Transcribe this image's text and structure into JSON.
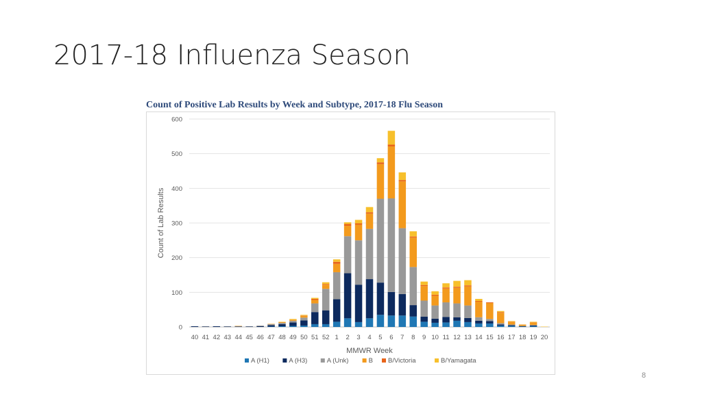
{
  "slide": {
    "title": "2017-18 Influenza Season",
    "page_number": "8"
  },
  "chart_data": {
    "type": "bar",
    "stacked": true,
    "title": "Count of Positive Lab Results by Week and Subtype, 2017-18 Flu Season",
    "xlabel": "MMWR Week",
    "ylabel": "Count of Lab Results",
    "ylim": [
      0,
      600
    ],
    "yticks": [
      0,
      100,
      200,
      300,
      400,
      500,
      600
    ],
    "grid": true,
    "legend_position": "bottom",
    "categories": [
      "40",
      "41",
      "42",
      "43",
      "44",
      "45",
      "46",
      "47",
      "48",
      "49",
      "50",
      "51",
      "52",
      "1",
      "2",
      "3",
      "4",
      "5",
      "6",
      "7",
      "8",
      "9",
      "10",
      "11",
      "12",
      "13",
      "14",
      "15",
      "16",
      "17",
      "18",
      "19",
      "20"
    ],
    "series": [
      {
        "name": "A (H1)",
        "color": "#1f77b4",
        "values": [
          0,
          0,
          0,
          0,
          0,
          0,
          0,
          1,
          2,
          3,
          4,
          8,
          8,
          15,
          25,
          14,
          25,
          35,
          33,
          33,
          30,
          15,
          12,
          13,
          18,
          14,
          10,
          10,
          4,
          3,
          1,
          2,
          0
        ]
      },
      {
        "name": "A (H3)",
        "color": "#0d2a5e",
        "values": [
          2,
          1,
          2,
          1,
          1,
          1,
          2,
          4,
          6,
          10,
          15,
          35,
          40,
          65,
          130,
          108,
          113,
          93,
          68,
          62,
          33,
          15,
          12,
          16,
          10,
          12,
          8,
          7,
          3,
          2,
          1,
          2,
          0
        ]
      },
      {
        "name": "A (Unk)",
        "color": "#999999",
        "values": [
          0,
          1,
          0,
          1,
          1,
          1,
          2,
          3,
          4,
          5,
          8,
          25,
          62,
          78,
          107,
          128,
          145,
          242,
          270,
          190,
          110,
          46,
          38,
          42,
          40,
          36,
          10,
          6,
          4,
          2,
          1,
          2,
          0
        ]
      },
      {
        "name": "B",
        "color": "#f39a1d",
        "values": [
          0,
          0,
          0,
          0,
          1,
          0,
          0,
          1,
          2,
          3,
          5,
          10,
          12,
          24,
          30,
          45,
          44,
          100,
          150,
          135,
          85,
          42,
          28,
          40,
          45,
          55,
          45,
          46,
          30,
          7,
          4,
          6,
          0
        ]
      },
      {
        "name": "B/Victoria",
        "color": "#e8641a",
        "values": [
          0,
          0,
          0,
          0,
          0,
          0,
          0,
          0,
          0,
          0,
          1,
          3,
          2,
          6,
          5,
          4,
          4,
          5,
          5,
          4,
          3,
          3,
          3,
          3,
          3,
          3,
          2,
          2,
          2,
          1,
          0,
          1,
          0
        ]
      },
      {
        "name": "B/Yamagata",
        "color": "#f7c02c",
        "values": [
          0,
          0,
          0,
          0,
          0,
          0,
          0,
          0,
          1,
          2,
          2,
          3,
          5,
          7,
          5,
          10,
          15,
          12,
          40,
          22,
          15,
          10,
          10,
          12,
          17,
          15,
          6,
          0,
          3,
          2,
          0,
          2,
          1
        ]
      }
    ]
  }
}
